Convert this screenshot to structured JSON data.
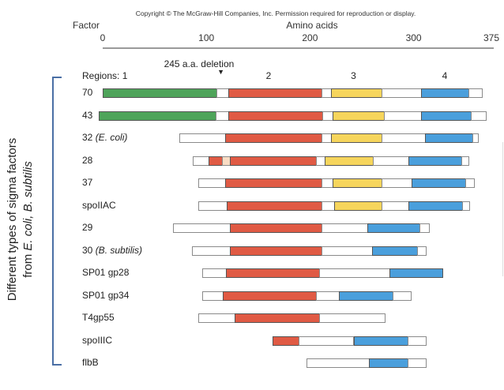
{
  "copyright": "Copyright © The McGraw-Hill Companies, Inc. Permission required for reproduction or display.",
  "factor_label": "Factor",
  "side_caption": {
    "line1": "Different types of sigma factors",
    "line2_prefix": "from ",
    "line2_italic": "E. coli, B. subtilis"
  },
  "colors": {
    "region1": "#4ea45a",
    "region2": "#e05a44",
    "region2_gap": "#f9dcc4",
    "region3": "#f6d55c",
    "region4": "#4a9fdc",
    "spacer": "#ffffff",
    "bracket": "#4a6fa5"
  },
  "chart_data": {
    "type": "table",
    "title": "Domain organization of sigma factors",
    "xlabel": "Amino acids",
    "xlim": [
      0,
      375
    ],
    "ticks": [
      {
        "value": 0,
        "label": "0"
      },
      {
        "value": 100,
        "label": "100"
      },
      {
        "value": 200,
        "label": "200"
      },
      {
        "value": 300,
        "label": "300"
      },
      {
        "value": 375,
        "label": "375"
      }
    ],
    "annotation": {
      "text": "245 a.a. deletion",
      "at": 114,
      "marker": "▼"
    },
    "region_labels": [
      {
        "label": "Regions: 1",
        "at": -20
      },
      {
        "label": "2",
        "at": 160
      },
      {
        "label": "3",
        "at": 242
      },
      {
        "label": "4",
        "at": 330
      }
    ],
    "rows": [
      {
        "name": "70",
        "italic": "",
        "segments": [
          {
            "type": "region1",
            "start": 0,
            "end": 110
          },
          {
            "type": "spacer",
            "start": 110,
            "end": 121
          },
          {
            "type": "region2",
            "start": 121,
            "end": 211
          },
          {
            "type": "spacer",
            "start": 211,
            "end": 220
          },
          {
            "type": "region3",
            "start": 220,
            "end": 269
          },
          {
            "type": "spacer",
            "start": 269,
            "end": 307
          },
          {
            "type": "region4",
            "start": 307,
            "end": 353
          },
          {
            "type": "spacer",
            "start": 353,
            "end": 366
          }
        ]
      },
      {
        "name": "43",
        "italic": "",
        "segments": [
          {
            "type": "region1",
            "start": -4,
            "end": 109
          },
          {
            "type": "spacer",
            "start": 109,
            "end": 121
          },
          {
            "type": "region2",
            "start": 121,
            "end": 212
          },
          {
            "type": "spacer",
            "start": 212,
            "end": 222
          },
          {
            "type": "region3",
            "start": 222,
            "end": 271
          },
          {
            "type": "spacer",
            "start": 271,
            "end": 307
          },
          {
            "type": "region4",
            "start": 307,
            "end": 355
          },
          {
            "type": "spacer",
            "start": 355,
            "end": 370
          }
        ]
      },
      {
        "name": "32 ",
        "italic": "(E. coli)",
        "segments": [
          {
            "type": "spacer",
            "start": 74,
            "end": 118
          },
          {
            "type": "region2",
            "start": 118,
            "end": 211
          },
          {
            "type": "spacer",
            "start": 211,
            "end": 220
          },
          {
            "type": "region3",
            "start": 220,
            "end": 269
          },
          {
            "type": "spacer",
            "start": 269,
            "end": 311
          },
          {
            "type": "region4",
            "start": 311,
            "end": 357
          },
          {
            "type": "spacer",
            "start": 357,
            "end": 362
          }
        ]
      },
      {
        "name": "28",
        "italic": "",
        "segments": [
          {
            "type": "spacer",
            "start": 87,
            "end": 102
          },
          {
            "type": "region2",
            "start": 102,
            "end": 115
          },
          {
            "type": "region2_gap",
            "start": 115,
            "end": 123
          },
          {
            "type": "region2",
            "start": 123,
            "end": 206
          },
          {
            "type": "spacer",
            "start": 206,
            "end": 214
          },
          {
            "type": "region3",
            "start": 214,
            "end": 261
          },
          {
            "type": "spacer",
            "start": 261,
            "end": 295
          },
          {
            "type": "region4",
            "start": 295,
            "end": 346
          },
          {
            "type": "spacer",
            "start": 346,
            "end": 353
          }
        ]
      },
      {
        "name": "37",
        "italic": "",
        "segments": [
          {
            "type": "spacer",
            "start": 92,
            "end": 118
          },
          {
            "type": "region2",
            "start": 118,
            "end": 211
          },
          {
            "type": "spacer",
            "start": 211,
            "end": 222
          },
          {
            "type": "region3",
            "start": 222,
            "end": 269
          },
          {
            "type": "spacer",
            "start": 269,
            "end": 298
          },
          {
            "type": "region4",
            "start": 298,
            "end": 350
          },
          {
            "type": "spacer",
            "start": 350,
            "end": 358
          }
        ]
      },
      {
        "name": "spoIIAC",
        "italic": "",
        "segments": [
          {
            "type": "spacer",
            "start": 92,
            "end": 120
          },
          {
            "type": "region2",
            "start": 120,
            "end": 211
          },
          {
            "type": "spacer",
            "start": 211,
            "end": 223
          },
          {
            "type": "region3",
            "start": 223,
            "end": 269
          },
          {
            "type": "spacer",
            "start": 269,
            "end": 295
          },
          {
            "type": "region4",
            "start": 295,
            "end": 347
          },
          {
            "type": "spacer",
            "start": 347,
            "end": 354
          }
        ]
      },
      {
        "name": "29",
        "italic": "",
        "segments": [
          {
            "type": "spacer",
            "start": 68,
            "end": 123
          },
          {
            "type": "region2",
            "start": 123,
            "end": 211
          },
          {
            "type": "spacer",
            "start": 211,
            "end": 255
          },
          {
            "type": "region4",
            "start": 255,
            "end": 306
          },
          {
            "type": "spacer",
            "start": 306,
            "end": 315
          }
        ]
      },
      {
        "name": "30 ",
        "italic": "(B. subtilis)",
        "segments": [
          {
            "type": "spacer",
            "start": 86,
            "end": 123
          },
          {
            "type": "region2",
            "start": 123,
            "end": 211
          },
          {
            "type": "spacer",
            "start": 211,
            "end": 260
          },
          {
            "type": "region4",
            "start": 260,
            "end": 303
          },
          {
            "type": "spacer",
            "start": 303,
            "end": 312
          }
        ]
      },
      {
        "name": "SP01 gp28",
        "italic": "",
        "segments": [
          {
            "type": "spacer",
            "start": 96,
            "end": 119
          },
          {
            "type": "region2",
            "start": 119,
            "end": 209
          },
          {
            "type": "spacer",
            "start": 209,
            "end": 277
          },
          {
            "type": "region4",
            "start": 277,
            "end": 328
          }
        ]
      },
      {
        "name": "SP01 gp34",
        "italic": "",
        "segments": [
          {
            "type": "spacer",
            "start": 96,
            "end": 116
          },
          {
            "type": "region2",
            "start": 116,
            "end": 206
          },
          {
            "type": "spacer",
            "start": 206,
            "end": 228
          },
          {
            "type": "region4",
            "start": 228,
            "end": 280
          },
          {
            "type": "spacer",
            "start": 280,
            "end": 297
          }
        ]
      },
      {
        "name": "T4gp55",
        "italic": "",
        "segments": [
          {
            "type": "spacer",
            "start": 92,
            "end": 127
          },
          {
            "type": "region2",
            "start": 127,
            "end": 209
          },
          {
            "type": "spacer",
            "start": 209,
            "end": 272
          }
        ]
      },
      {
        "name": "spoIIIC",
        "italic": "",
        "segments": [
          {
            "type": "region2",
            "start": 164,
            "end": 189
          },
          {
            "type": "spacer",
            "start": 189,
            "end": 242
          },
          {
            "type": "region4",
            "start": 242,
            "end": 294
          },
          {
            "type": "spacer",
            "start": 294,
            "end": 312
          }
        ]
      },
      {
        "name": "flbB",
        "italic": "",
        "segments": [
          {
            "type": "spacer",
            "start": 197,
            "end": 257
          },
          {
            "type": "region4",
            "start": 257,
            "end": 294
          },
          {
            "type": "spacer",
            "start": 294,
            "end": 312
          }
        ]
      }
    ]
  }
}
